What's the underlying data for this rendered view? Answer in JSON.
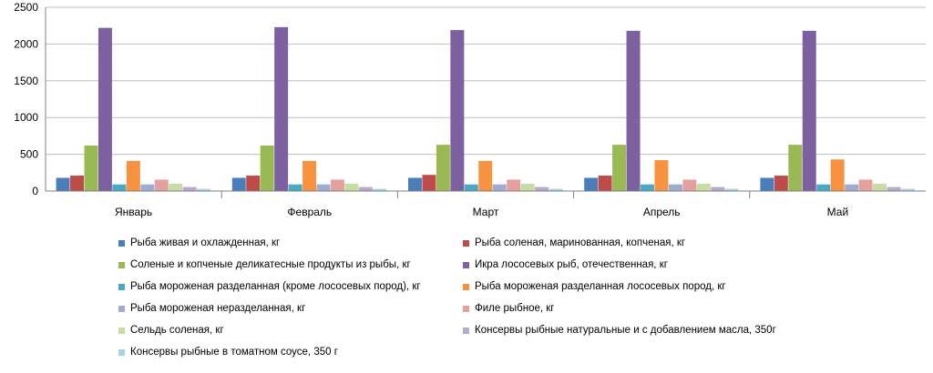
{
  "chart_data": {
    "type": "bar",
    "categories": [
      "Январь",
      "Февраль",
      "Март",
      "Апрель",
      "Май"
    ],
    "ylim": [
      0,
      2500
    ],
    "yticks": [
      0,
      500,
      1000,
      1500,
      2000,
      2500
    ],
    "grid": true,
    "legend_position": "bottom",
    "series": [
      {
        "name": "Рыба живая и охлажденная, кг",
        "color": "#4a7ebb",
        "values": [
          180,
          180,
          180,
          180,
          180
        ]
      },
      {
        "name": "Рыба соленая, маринованная, копченая, кг",
        "color": "#be4b48",
        "values": [
          210,
          210,
          220,
          210,
          210
        ]
      },
      {
        "name": "Соленые и копченые деликатесные продукты из рыбы, кг",
        "color": "#98b954",
        "values": [
          620,
          620,
          630,
          630,
          630
        ]
      },
      {
        "name": "Икра лососевых рыб, отечественная, кг",
        "color": "#7d60a0",
        "values": [
          2220,
          2230,
          2190,
          2180,
          2180
        ]
      },
      {
        "name": "Рыба мороженая разделанная (кроме лососевых пород), кг",
        "color": "#46aac5",
        "values": [
          90,
          90,
          90,
          90,
          90
        ]
      },
      {
        "name": "Рыба мороженая разделанная лососевых пород, кг",
        "color": "#f69240",
        "values": [
          410,
          410,
          410,
          420,
          430
        ]
      },
      {
        "name": "Рыба мороженая неразделанная, кг",
        "color": "#9dadd1",
        "values": [
          90,
          90,
          90,
          90,
          90
        ]
      },
      {
        "name": "Филе рыбное, кг",
        "color": "#e3a09e",
        "values": [
          155,
          155,
          155,
          155,
          155
        ]
      },
      {
        "name": "Сельдь соленая, кг",
        "color": "#c6dca0",
        "values": [
          100,
          100,
          100,
          100,
          100
        ]
      },
      {
        "name": "Консервы рыбные натуральные и с добавлением масла, 350г",
        "color": "#b9aacb",
        "values": [
          55,
          55,
          55,
          55,
          55
        ]
      },
      {
        "name": "Консервы рыбные в томатном соусе, 350 г",
        "color": "#a8d4e2",
        "values": [
          30,
          30,
          30,
          30,
          30
        ]
      }
    ]
  }
}
